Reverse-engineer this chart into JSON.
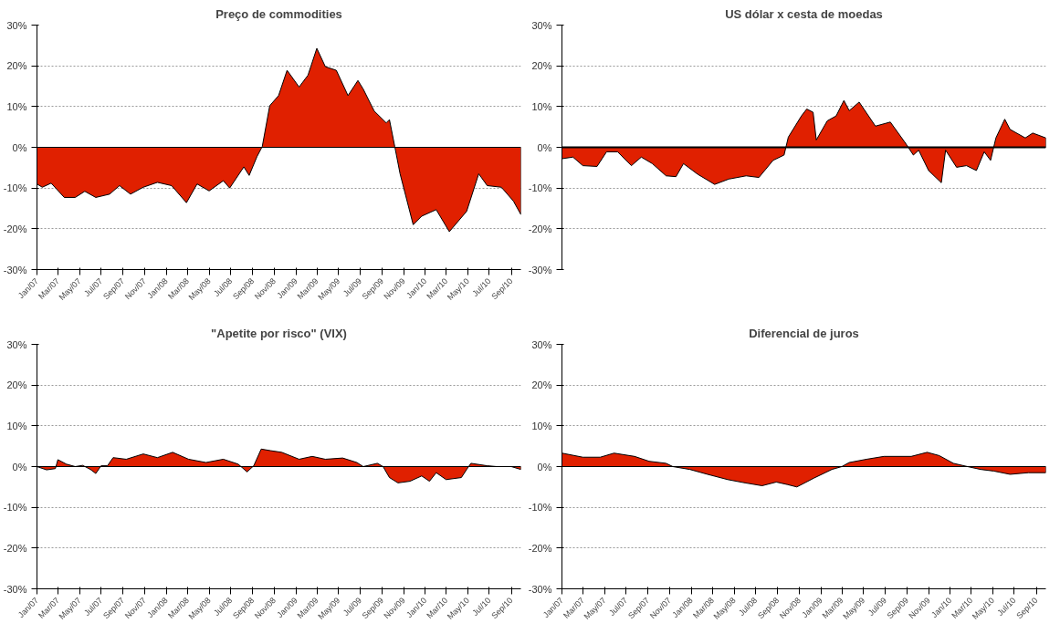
{
  "chart_data": [
    {
      "type": "area",
      "title": "Preço de commodities",
      "xlim": [
        "2007-01-01",
        "2010-09-28"
      ],
      "ylim": [
        -30,
        30
      ],
      "xticks": [
        {
          "value": "2007-01",
          "label": "Jan/07"
        },
        {
          "value": "2007-03",
          "label": "Mar/07"
        },
        {
          "value": "2007-05",
          "label": "May/07"
        },
        {
          "value": "2007-07",
          "label": "Jul/07"
        },
        {
          "value": "2007-09",
          "label": "Sep/07"
        },
        {
          "value": "2007-11",
          "label": "Nov/07"
        },
        {
          "value": "2008-01",
          "label": "Jan/08"
        },
        {
          "value": "2008-03",
          "label": "Mar/08"
        },
        {
          "value": "2008-05",
          "label": "May/08"
        },
        {
          "value": "2008-07",
          "label": "Jul/08"
        },
        {
          "value": "2008-09",
          "label": "Sep/08"
        },
        {
          "value": "2008-11",
          "label": "Nov/08"
        },
        {
          "value": "2009-01",
          "label": "Jan/09"
        },
        {
          "value": "2009-03",
          "label": "Mar/09"
        },
        {
          "value": "2009-05",
          "label": "May/09"
        },
        {
          "value": "2009-07",
          "label": "Jul/09"
        },
        {
          "value": "2009-09",
          "label": "Sep/09"
        },
        {
          "value": "2009-11",
          "label": "Nov/09"
        },
        {
          "value": "2010-01",
          "label": "Jan/10"
        },
        {
          "value": "2010-03",
          "label": "Mar/10"
        },
        {
          "value": "2010-05",
          "label": "May/10"
        },
        {
          "value": "2010-07",
          "label": "Jul/10"
        },
        {
          "value": "2010-09",
          "label": "Sep/10"
        }
      ],
      "yticks": [
        {
          "value": -30,
          "label": "-30%"
        },
        {
          "value": -20,
          "label": "-20%"
        },
        {
          "value": -10,
          "label": "-10%"
        },
        {
          "value": 0,
          "label": "0%"
        },
        {
          "value": 10,
          "label": "10%"
        },
        {
          "value": 20,
          "label": "20%"
        },
        {
          "value": 30,
          "label": "30%"
        }
      ],
      "grid": "y",
      "series": [
        {
          "color": "#e02000",
          "x": [
            "2007-01-01",
            "2007-01-16",
            "2007-02-10",
            "2007-03-19",
            "2007-04-19",
            "2007-05-16",
            "2007-06-16",
            "2007-07-25",
            "2007-08-22",
            "2007-09-22",
            "2007-10-28",
            "2007-12-07",
            "2008-01-16",
            "2008-02-27",
            "2008-03-28",
            "2008-05-01",
            "2008-06-10",
            "2008-06-28",
            "2008-08-07",
            "2008-08-22",
            "2008-09-13",
            "2008-09-28",
            "2008-10-19",
            "2008-11-13",
            "2008-12-07",
            "2009-01-10",
            "2009-02-04",
            "2009-03-01",
            "2009-03-25",
            "2009-04-25",
            "2009-05-28",
            "2009-06-25",
            "2009-07-10",
            "2009-08-10",
            "2009-09-13",
            "2009-09-22",
            "2009-10-07",
            "2009-10-22",
            "2009-11-28",
            "2009-12-22",
            "2010-02-01",
            "2010-03-10",
            "2010-04-28",
            "2010-06-01",
            "2010-06-25",
            "2010-08-04",
            "2010-09-07",
            "2010-09-28"
          ],
          "values": [
            -9,
            -9.8,
            -8.8,
            -12.3,
            -12.3,
            -10.8,
            -12.3,
            -11.5,
            -9.4,
            -11.5,
            -9.8,
            -8.6,
            -9.4,
            -13.6,
            -9,
            -10.7,
            -8.2,
            -10,
            -4.8,
            -6.9,
            -2.3,
            0.2,
            10.2,
            12.7,
            18.9,
            14.8,
            17.7,
            24.3,
            19.8,
            18.9,
            12.7,
            16.4,
            14.3,
            8.9,
            6,
            6.8,
            0.2,
            -6.5,
            -19,
            -16.9,
            -15.3,
            -20.7,
            -15.7,
            -6.5,
            -9.4,
            -9.8,
            -13.2,
            -16.5
          ]
        }
      ]
    },
    {
      "type": "area",
      "title": "US dólar x cesta de moedas",
      "xlim": [
        "2007-01-01",
        "2010-09-28"
      ],
      "ylim": [
        -30,
        30
      ],
      "tick_labels": "y",
      "yticks": [
        {
          "value": -30,
          "label": "-30%"
        },
        {
          "value": -20,
          "label": "-20%"
        },
        {
          "value": -10,
          "label": "-10%"
        },
        {
          "value": 0,
          "label": "0%"
        },
        {
          "value": 10,
          "label": "10%"
        },
        {
          "value": 20,
          "label": "20%"
        },
        {
          "value": 30,
          "label": "30%"
        }
      ],
      "grid": "y",
      "ref_lines": [
        {
          "axis": "y",
          "value": 0,
          "color": "#000000"
        }
      ],
      "series": [
        {
          "color": "#e02000",
          "x": [
            "2007-01-01",
            "2007-02-01",
            "2007-03-01",
            "2007-04-10",
            "2007-05-07",
            "2007-06-07",
            "2007-07-16",
            "2007-08-13",
            "2007-09-13",
            "2007-10-22",
            "2007-11-19",
            "2007-12-10",
            "2008-01-19",
            "2008-03-07",
            "2008-04-16",
            "2008-06-04",
            "2008-07-10",
            "2008-08-19",
            "2008-09-19",
            "2008-10-01",
            "2008-11-07",
            "2008-11-22",
            "2008-12-10",
            "2008-12-19",
            "2009-01-19",
            "2009-02-13",
            "2009-03-07",
            "2009-03-22",
            "2009-04-19",
            "2009-06-04",
            "2009-07-16",
            "2009-08-28",
            "2009-09-19",
            "2009-10-04",
            "2009-11-01",
            "2009-12-07",
            "2009-12-19",
            "2010-01-19",
            "2010-02-16",
            "2010-03-16",
            "2010-04-07",
            "2010-04-25",
            "2010-05-10",
            "2010-06-04",
            "2010-06-19",
            "2010-08-01",
            "2010-08-22",
            "2010-09-28"
          ],
          "values": [
            -2.8,
            -2.4,
            -4.5,
            -4.7,
            -1.1,
            -1.1,
            -4.5,
            -2.4,
            -4,
            -7,
            -7.2,
            -4,
            -6.6,
            -9.1,
            -7.8,
            -7,
            -7.4,
            -3.2,
            -1.9,
            2.5,
            7.7,
            9.4,
            8.6,
            1.8,
            6.5,
            7.7,
            11.5,
            9,
            11.1,
            5.2,
            6.2,
            1,
            -1.9,
            -0.7,
            -5.7,
            -8.7,
            -0.7,
            -4.9,
            -4.5,
            -5.7,
            -1.1,
            -3.2,
            2.3,
            6.9,
            4.4,
            2.3,
            3.5,
            2.3
          ]
        }
      ]
    },
    {
      "type": "area",
      "title": "\"Apetite por risco\" (VIX)",
      "xlim": [
        "2007-01-01",
        "2010-09-28"
      ],
      "ylim": [
        -30,
        30
      ],
      "xticks": [
        {
          "value": "2007-01",
          "label": "Jan/07"
        },
        {
          "value": "2007-03",
          "label": "Mar/07"
        },
        {
          "value": "2007-05",
          "label": "May/07"
        },
        {
          "value": "2007-07",
          "label": "Jul/07"
        },
        {
          "value": "2007-09",
          "label": "Sep/07"
        },
        {
          "value": "2007-11",
          "label": "Nov/07"
        },
        {
          "value": "2008-01",
          "label": "Jan/08"
        },
        {
          "value": "2008-03",
          "label": "Mar/08"
        },
        {
          "value": "2008-05",
          "label": "May/08"
        },
        {
          "value": "2008-07",
          "label": "Jul/08"
        },
        {
          "value": "2008-09",
          "label": "Sep/08"
        },
        {
          "value": "2008-11",
          "label": "Nov/08"
        },
        {
          "value": "2009-01",
          "label": "Jan/09"
        },
        {
          "value": "2009-03",
          "label": "Mar/09"
        },
        {
          "value": "2009-05",
          "label": "May/09"
        },
        {
          "value": "2009-07",
          "label": "Jul/09"
        },
        {
          "value": "2009-09",
          "label": "Sep/09"
        },
        {
          "value": "2009-11",
          "label": "Nov/09"
        },
        {
          "value": "2010-01",
          "label": "Jan/10"
        },
        {
          "value": "2010-03",
          "label": "Mar/10"
        },
        {
          "value": "2010-05",
          "label": "May/10"
        },
        {
          "value": "2010-07",
          "label": "Jul/10"
        },
        {
          "value": "2010-09",
          "label": "Sep/10"
        }
      ],
      "yticks": [
        {
          "value": -30,
          "label": "-30%"
        },
        {
          "value": -20,
          "label": "-20%"
        },
        {
          "value": -10,
          "label": "-10%"
        },
        {
          "value": 0,
          "label": "0%"
        },
        {
          "value": 10,
          "label": "10%"
        },
        {
          "value": 20,
          "label": "20%"
        },
        {
          "value": 30,
          "label": "30%"
        }
      ],
      "grid": "y",
      "series": [
        {
          "color": "#e02000",
          "x": [
            "2007-01-01",
            "2007-01-28",
            "2007-02-22",
            "2007-03-01",
            "2007-03-25",
            "2007-04-19",
            "2007-05-10",
            "2007-06-01",
            "2007-06-16",
            "2007-07-01",
            "2007-07-19",
            "2007-08-04",
            "2007-09-10",
            "2007-10-28",
            "2007-12-07",
            "2008-01-19",
            "2008-03-04",
            "2008-04-22",
            "2008-06-10",
            "2008-07-22",
            "2008-08-16",
            "2008-09-04",
            "2008-09-25",
            "2008-10-22",
            "2008-11-22",
            "2009-01-10",
            "2009-02-16",
            "2009-03-25",
            "2009-05-13",
            "2009-06-22",
            "2009-07-10",
            "2009-08-19",
            "2009-09-04",
            "2009-09-22",
            "2009-10-16",
            "2009-11-19",
            "2009-12-22",
            "2010-01-13",
            "2010-02-01",
            "2010-03-01",
            "2010-04-13",
            "2010-04-28",
            "2010-05-10",
            "2010-06-25",
            "2010-07-22",
            "2010-09-01",
            "2010-09-28"
          ],
          "values": [
            0,
            -0.8,
            -0.5,
            1.7,
            0.6,
            0,
            0.3,
            -0.7,
            -1.7,
            0.2,
            0.2,
            2.2,
            1.8,
            3.1,
            2.2,
            3.5,
            1.8,
            1,
            1.8,
            0.6,
            -1.3,
            0.2,
            4.3,
            3.9,
            3.5,
            1.8,
            2.5,
            1.8,
            2.1,
            1,
            0,
            0.8,
            0,
            -2.7,
            -4,
            -3.6,
            -2.3,
            -3.6,
            -1.5,
            -3.2,
            -2.7,
            -0.7,
            0.8,
            0.2,
            0,
            0,
            -0.7
          ]
        }
      ]
    },
    {
      "type": "area",
      "title": "Diferencial de juros",
      "xlim": [
        "2007-01-01",
        "2010-09-28"
      ],
      "ylim": [
        -30,
        30
      ],
      "xticks": [
        {
          "value": "2007-01",
          "label": "Jan/07"
        },
        {
          "value": "2007-03",
          "label": "Mar/07"
        },
        {
          "value": "2007-05",
          "label": "May/07"
        },
        {
          "value": "2007-07",
          "label": "Jul/07"
        },
        {
          "value": "2007-09",
          "label": "Sep/07"
        },
        {
          "value": "2007-11",
          "label": "Nov/07"
        },
        {
          "value": "2008-01",
          "label": "Jan/08"
        },
        {
          "value": "2008-03",
          "label": "Mar/08"
        },
        {
          "value": "2008-05",
          "label": "May/08"
        },
        {
          "value": "2008-07",
          "label": "Jul/08"
        },
        {
          "value": "2008-09",
          "label": "Sep/08"
        },
        {
          "value": "2008-11",
          "label": "Nov/08"
        },
        {
          "value": "2009-01",
          "label": "Jan/09"
        },
        {
          "value": "2009-03",
          "label": "Mar/09"
        },
        {
          "value": "2009-05",
          "label": "May/09"
        },
        {
          "value": "2009-07",
          "label": "Jul/09"
        },
        {
          "value": "2009-09",
          "label": "Sep/09"
        },
        {
          "value": "2009-11",
          "label": "Nov/09"
        },
        {
          "value": "2010-01",
          "label": "Jan/10"
        },
        {
          "value": "2010-03",
          "label": "Mar/10"
        },
        {
          "value": "2010-05",
          "label": "May/10"
        },
        {
          "value": "2010-07",
          "label": "Jul/10"
        },
        {
          "value": "2010-09",
          "label": "Sep/10"
        }
      ],
      "yticks": [
        {
          "value": -30,
          "label": "-30%"
        },
        {
          "value": -20,
          "label": "-20%"
        },
        {
          "value": -10,
          "label": "-10%"
        },
        {
          "value": 0,
          "label": "0%"
        },
        {
          "value": 10,
          "label": "10%"
        },
        {
          "value": 20,
          "label": "20%"
        },
        {
          "value": 30,
          "label": "30%"
        }
      ],
      "grid": "y",
      "series": [
        {
          "color": "#e02000",
          "x": [
            "2007-01-01",
            "2007-03-01",
            "2007-04-19",
            "2007-05-28",
            "2007-07-25",
            "2007-09-04",
            "2007-10-22",
            "2007-11-10",
            "2007-12-28",
            "2008-02-16",
            "2008-04-13",
            "2008-06-01",
            "2008-07-19",
            "2008-08-28",
            "2008-09-28",
            "2008-10-25",
            "2008-12-13",
            "2009-02-01",
            "2009-03-01",
            "2009-03-22",
            "2009-05-10",
            "2009-06-28",
            "2009-09-13",
            "2009-10-28",
            "2009-12-01",
            "2010-01-10",
            "2010-02-19",
            "2010-03-28",
            "2010-05-04",
            "2010-06-19",
            "2010-08-10",
            "2010-09-28"
          ],
          "values": [
            3.3,
            2.3,
            2.3,
            3.3,
            2.5,
            1.3,
            0.8,
            0,
            -0.7,
            -1.9,
            -3.2,
            -4,
            -4.7,
            -3.8,
            -4.4,
            -5,
            -2.8,
            -0.7,
            0,
            1,
            1.8,
            2.5,
            2.5,
            3.5,
            2.7,
            0.8,
            0,
            -0.7,
            -1.1,
            -1.9,
            -1.5,
            -1.5
          ]
        }
      ]
    }
  ]
}
